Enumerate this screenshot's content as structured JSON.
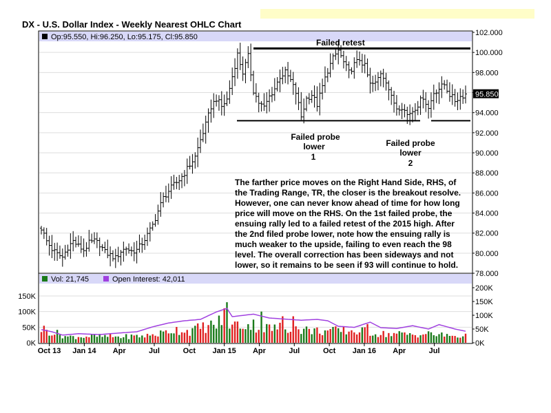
{
  "chart_data": {
    "type": "ohlc",
    "title": "DX - U.S. Dollar Index - Weekly Nearest OHLC Chart",
    "last_bar_label": "Op:95.550, Hi:96.250, Lo:95.175, Cl:95.850",
    "last_close_label": "95.850",
    "price_axis": {
      "min": 78,
      "max": 102,
      "ticks": [
        "78.000",
        "80.000",
        "82.000",
        "84.000",
        "86.000",
        "88.000",
        "90.000",
        "92.000",
        "94.000",
        "96.000",
        "98.000",
        "100.000",
        "102.000"
      ]
    },
    "x_ticks": [
      "Oct 13",
      "Jan 14",
      "Apr",
      "Jul",
      "Oct",
      "Jan 15",
      "Apr",
      "Jul",
      "Oct",
      "Jan 16",
      "Apr",
      "Jul"
    ],
    "price_close_path": [
      {
        "w": 0,
        "c": 82.5
      },
      {
        "w": 2,
        "c": 81.2
      },
      {
        "w": 4,
        "c": 80.4
      },
      {
        "w": 6,
        "c": 79.9
      },
      {
        "w": 8,
        "c": 79.6
      },
      {
        "w": 10,
        "c": 80.6
      },
      {
        "w": 12,
        "c": 81.2
      },
      {
        "w": 14,
        "c": 80.7
      },
      {
        "w": 16,
        "c": 80.3
      },
      {
        "w": 18,
        "c": 81.0
      },
      {
        "w": 20,
        "c": 81.2
      },
      {
        "w": 22,
        "c": 80.9
      },
      {
        "w": 24,
        "c": 80.1
      },
      {
        "w": 26,
        "c": 79.8
      },
      {
        "w": 28,
        "c": 79.5
      },
      {
        "w": 30,
        "c": 80.2
      },
      {
        "w": 32,
        "c": 80.5
      },
      {
        "w": 34,
        "c": 80.2
      },
      {
        "w": 36,
        "c": 80.3
      },
      {
        "w": 38,
        "c": 81.0
      },
      {
        "w": 40,
        "c": 81.8
      },
      {
        "w": 42,
        "c": 82.8
      },
      {
        "w": 44,
        "c": 84.2
      },
      {
        "w": 46,
        "c": 85.5
      },
      {
        "w": 48,
        "c": 86.2
      },
      {
        "w": 50,
        "c": 86.8
      },
      {
        "w": 52,
        "c": 87.3
      },
      {
        "w": 54,
        "c": 88.0
      },
      {
        "w": 56,
        "c": 88.8
      },
      {
        "w": 58,
        "c": 89.6
      },
      {
        "w": 60,
        "c": 91.3
      },
      {
        "w": 62,
        "c": 92.8
      },
      {
        "w": 64,
        "c": 94.6
      },
      {
        "w": 66,
        "c": 95.4
      },
      {
        "w": 68,
        "c": 94.6
      },
      {
        "w": 70,
        "c": 95.3
      },
      {
        "w": 72,
        "c": 97.6
      },
      {
        "w": 74,
        "c": 99.8
      },
      {
        "w": 76,
        "c": 98.0
      },
      {
        "w": 78,
        "c": 99.6
      },
      {
        "w": 80,
        "c": 96.2
      },
      {
        "w": 82,
        "c": 95.0
      },
      {
        "w": 84,
        "c": 94.5
      },
      {
        "w": 86,
        "c": 95.6
      },
      {
        "w": 88,
        "c": 96.4
      },
      {
        "w": 90,
        "c": 97.6
      },
      {
        "w": 92,
        "c": 98.0
      },
      {
        "w": 94,
        "c": 97.2
      },
      {
        "w": 96,
        "c": 96.0
      },
      {
        "w": 98,
        "c": 93.6
      },
      {
        "w": 100,
        "c": 95.4
      },
      {
        "w": 102,
        "c": 95.8
      },
      {
        "w": 104,
        "c": 94.8
      },
      {
        "w": 106,
        "c": 96.6
      },
      {
        "w": 108,
        "c": 98.2
      },
      {
        "w": 110,
        "c": 99.4
      },
      {
        "w": 112,
        "c": 100.2
      },
      {
        "w": 114,
        "c": 99.0
      },
      {
        "w": 116,
        "c": 98.0
      },
      {
        "w": 118,
        "c": 98.8
      },
      {
        "w": 120,
        "c": 99.3
      },
      {
        "w": 122,
        "c": 98.6
      },
      {
        "w": 124,
        "c": 96.8
      },
      {
        "w": 126,
        "c": 96.9
      },
      {
        "w": 128,
        "c": 98.0
      },
      {
        "w": 130,
        "c": 97.2
      },
      {
        "w": 132,
        "c": 95.5
      },
      {
        "w": 134,
        "c": 94.5
      },
      {
        "w": 136,
        "c": 94.6
      },
      {
        "w": 138,
        "c": 93.8
      },
      {
        "w": 140,
        "c": 94.2
      },
      {
        "w": 142,
        "c": 94.8
      },
      {
        "w": 144,
        "c": 95.6
      },
      {
        "w": 146,
        "c": 94.4
      },
      {
        "w": 148,
        "c": 96.0
      },
      {
        "w": 150,
        "c": 96.4
      },
      {
        "w": 152,
        "c": 96.8
      },
      {
        "w": 154,
        "c": 95.8
      },
      {
        "w": 156,
        "c": 95.2
      },
      {
        "w": 158,
        "c": 95.6
      },
      {
        "w": 160,
        "c": 95.85
      }
    ],
    "volume_panel": {
      "vol_label": "Vol: 21,745",
      "oi_label": "Open Interest: 42,011",
      "left_ticks": [
        "0K",
        "50K",
        "100K",
        "150K"
      ],
      "right_ticks": [
        "0K",
        "50K",
        "100K",
        "150K",
        "200K"
      ],
      "left_max": 150000,
      "right_max": 200000,
      "volume_profile": [
        {
          "w": 0,
          "v": 48000
        },
        {
          "w": 10,
          "v": 20000
        },
        {
          "w": 20,
          "v": 22000
        },
        {
          "w": 30,
          "v": 20000
        },
        {
          "w": 40,
          "v": 24000
        },
        {
          "w": 46,
          "v": 33000
        },
        {
          "w": 50,
          "v": 45000
        },
        {
          "w": 56,
          "v": 40000
        },
        {
          "w": 62,
          "v": 55000
        },
        {
          "w": 66,
          "v": 60000
        },
        {
          "w": 69,
          "v": 90000
        },
        {
          "w": 72,
          "v": 58000
        },
        {
          "w": 76,
          "v": 62000
        },
        {
          "w": 80,
          "v": 60000
        },
        {
          "w": 86,
          "v": 48000
        },
        {
          "w": 92,
          "v": 52000
        },
        {
          "w": 98,
          "v": 45000
        },
        {
          "w": 104,
          "v": 40000
        },
        {
          "w": 110,
          "v": 40000
        },
        {
          "w": 116,
          "v": 40000
        },
        {
          "w": 122,
          "v": 38000
        },
        {
          "w": 128,
          "v": 30000
        },
        {
          "w": 134,
          "v": 30000
        },
        {
          "w": 140,
          "v": 28000
        },
        {
          "w": 146,
          "v": 30000
        },
        {
          "w": 152,
          "v": 25000
        },
        {
          "w": 160,
          "v": 22000
        }
      ],
      "volume_spikes": [
        {
          "w": 70,
          "v": 130000
        },
        {
          "w": 83,
          "v": 100000
        },
        {
          "w": 91,
          "v": 85000
        },
        {
          "w": 95,
          "v": 85000
        },
        {
          "w": 123,
          "v": 60000
        }
      ],
      "open_interest_path": [
        {
          "w": 0,
          "oi": 48000
        },
        {
          "w": 4,
          "oi": 40000
        },
        {
          "w": 8,
          "oi": 28000
        },
        {
          "w": 14,
          "oi": 33000
        },
        {
          "w": 22,
          "oi": 30000
        },
        {
          "w": 30,
          "oi": 36000
        },
        {
          "w": 36,
          "oi": 40000
        },
        {
          "w": 42,
          "oi": 58000
        },
        {
          "w": 48,
          "oi": 72000
        },
        {
          "w": 54,
          "oi": 80000
        },
        {
          "w": 60,
          "oi": 85000
        },
        {
          "w": 66,
          "oi": 112000
        },
        {
          "w": 70,
          "oi": 125000
        },
        {
          "w": 72,
          "oi": 95000
        },
        {
          "w": 80,
          "oi": 104000
        },
        {
          "w": 86,
          "oi": 90000
        },
        {
          "w": 92,
          "oi": 86000
        },
        {
          "w": 98,
          "oi": 82000
        },
        {
          "w": 104,
          "oi": 85000
        },
        {
          "w": 108,
          "oi": 80000
        },
        {
          "w": 112,
          "oi": 60000
        },
        {
          "w": 118,
          "oi": 56000
        },
        {
          "w": 124,
          "oi": 75000
        },
        {
          "w": 128,
          "oi": 55000
        },
        {
          "w": 134,
          "oi": 52000
        },
        {
          "w": 140,
          "oi": 62000
        },
        {
          "w": 146,
          "oi": 50000
        },
        {
          "w": 150,
          "oi": 66000
        },
        {
          "w": 156,
          "oi": 50000
        },
        {
          "w": 160,
          "oi": 42011
        }
      ]
    },
    "annotations": {
      "failed_retest": "Failed retest",
      "probe1": [
        "Failed probe",
        "lower",
        "1"
      ],
      "probe2": [
        "Failed probe",
        "lower",
        "2"
      ],
      "paragraph": [
        "The farther price moves on the Right Hand Side, RHS, of",
        "the Trading Range, TR, the closer is the breakout resolve.",
        "However, one can never know ahead of time for how long",
        "price will move on the RHS.  On the 1st failed probe, the",
        "ensuing rally led to a failed retest of the 2015 high.  After",
        "the 2nd filed probe lower, note how the ensuing rally is",
        "much weaker to the upside, failing to even reach the 98",
        "level. The overall correction has been sideways and not",
        "lower, so it remains to be seen if 93 will continue to hold."
      ],
      "resistance_price": 100.4,
      "support_price": 93.2
    }
  },
  "colors": {
    "legend_band": "#d8d8f8",
    "yellow_band": "#fffdc8",
    "price_bar": "#000000",
    "vol_up": "#1a7a1a",
    "vol_down": "#e02020",
    "open_interest": "#a040e0",
    "vol_swatch": "#1a7a1a",
    "oi_swatch": "#a040e0"
  }
}
